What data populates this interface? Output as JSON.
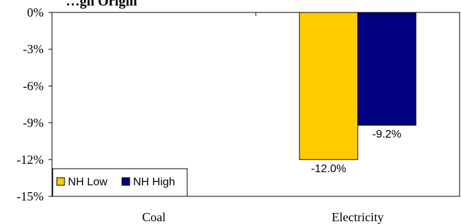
{
  "chart_data": {
    "type": "bar",
    "title": "…gn Origin",
    "categories": [
      "Coal",
      "Electricity"
    ],
    "series": [
      {
        "name": "NH Low",
        "values": [
          null,
          -12.0
        ],
        "color": "#FFCC00"
      },
      {
        "name": "NH High",
        "values": [
          null,
          -9.2
        ],
        "color": "#000080"
      }
    ],
    "data_labels": {
      "Electricity": [
        "-12.0%",
        "-9.2%"
      ]
    },
    "yticks": [
      "0%",
      "-3%",
      "-6%",
      "-9%",
      "-12%",
      "-15%"
    ],
    "ytick_values": [
      0,
      -3,
      -6,
      -9,
      -12,
      -15
    ],
    "ylim": [
      -15,
      0
    ],
    "xlabel": "",
    "ylabel": "",
    "legend_position": "bottom-left",
    "grid": false
  }
}
